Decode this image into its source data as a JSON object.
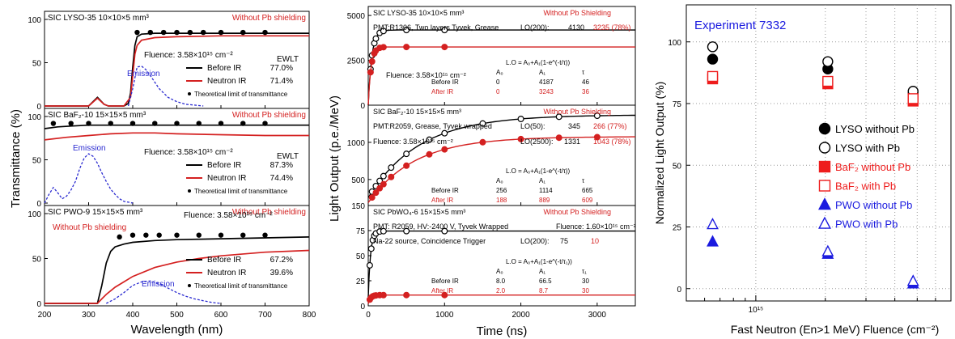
{
  "chart_data": [
    {
      "type": "line",
      "xlabel": "Wavelength (nm)",
      "ylabel": "Transmittance (%)",
      "xlim": [
        200,
        800
      ],
      "xticks": [
        "200",
        "300",
        "400",
        "500",
        "600",
        "700",
        "800"
      ],
      "panels": [
        {
          "name": "lyso",
          "title": "SIC LYSO-35  10×10×5 mm³",
          "shielding": "Without Pb shielding",
          "fluence": "Fluence: 3.58×10¹⁵ cm⁻²",
          "emission_label": "Emission",
          "ewlt_header": "EWLT",
          "ylim": [
            0,
            100
          ],
          "yticks": [
            "0",
            "50",
            "100"
          ],
          "legend": [
            {
              "label": "Before IR",
              "value": "77.0%",
              "color": "#000000"
            },
            {
              "label": "Neutron IR",
              "value": "71.4%",
              "color": "#d42020"
            }
          ],
          "theory_label": "Theoretical limit of transmittance",
          "series": [
            {
              "name": "Before IR",
              "color": "#000000",
              "x": [
                200,
                300,
                320,
                335,
                345,
                380,
                390,
                395,
                400,
                405,
                410,
                420,
                450,
                500,
                600,
                700,
                800
              ],
              "y": [
                0,
                0,
                10,
                2,
                0,
                0,
                3,
                15,
                45,
                70,
                80,
                83,
                84,
                84,
                84,
                84,
                84
              ]
            },
            {
              "name": "Neutron IR",
              "color": "#d42020",
              "x": [
                200,
                300,
                320,
                335,
                345,
                380,
                395,
                400,
                405,
                410,
                420,
                450,
                500,
                600,
                700,
                800
              ],
              "y": [
                0,
                0,
                9,
                2,
                0,
                0,
                10,
                35,
                60,
                70,
                76,
                79,
                80,
                81,
                81,
                81
              ]
            },
            {
              "name": "Emission",
              "color": "#2a2ad0",
              "dashed": true,
              "x": [
                390,
                400,
                410,
                420,
                430,
                440,
                460,
                480,
                500,
                520,
                540,
                560
              ],
              "y": [
                0,
                20,
                45,
                46,
                42,
                35,
                20,
                10,
                5,
                2,
                1,
                0
              ]
            }
          ],
          "theory_points": {
            "x": [
              410,
              440,
              470,
              500,
              530,
              560,
              600,
              650,
              700
            ],
            "y": [
              85,
              85,
              85,
              85,
              85,
              85,
              85,
              85,
              85
            ]
          }
        },
        {
          "name": "baf2",
          "title": "SIC BaF₂-10  15×15×5 mm³",
          "shielding": "Without Pb shielding",
          "fluence": "Fluence: 3.58×10¹⁵ cm⁻²",
          "emission_label": "Emission",
          "ewlt_header": "EWLT",
          "ylim": [
            0,
            100
          ],
          "yticks": [
            "0",
            "50",
            "100"
          ],
          "legend": [
            {
              "label": "Before IR",
              "value": "87.3%",
              "color": "#000000"
            },
            {
              "label": "Neutron IR",
              "value": "74.4%",
              "color": "#d42020"
            }
          ],
          "theory_label": "Theoretical limit of transmittance",
          "series": [
            {
              "name": "Before IR",
              "color": "#000000",
              "x": [
                200,
                230,
                260,
                300,
                350,
                400,
                500,
                600,
                700,
                800
              ],
              "y": [
                86,
                88,
                89,
                90,
                90,
                90,
                90,
                90,
                90,
                90
              ]
            },
            {
              "name": "Neutron IR",
              "color": "#d42020",
              "x": [
                200,
                250,
                300,
                350,
                400,
                450,
                500,
                600,
                700,
                800
              ],
              "y": [
                73,
                76,
                78,
                80,
                81,
                81,
                80,
                79,
                78,
                78
              ]
            },
            {
              "name": "Emission",
              "color": "#2a2ad0",
              "dashed": true,
              "x": [
                200,
                210,
                220,
                230,
                240,
                250,
                260,
                270,
                280,
                290,
                300,
                310,
                320,
                330,
                340,
                350,
                360,
                370,
                380,
                390,
                400
              ],
              "y": [
                0,
                10,
                18,
                12,
                5,
                8,
                15,
                25,
                40,
                52,
                57,
                54,
                46,
                35,
                25,
                16,
                10,
                5,
                2,
                1,
                0
              ]
            }
          ],
          "theory_points": {
            "x": [
              220,
              260,
              300,
              350,
              400,
              450,
              500,
              550,
              600,
              650,
              700
            ],
            "y": [
              92,
              92,
              92,
              92,
              92,
              92,
              92,
              92,
              92,
              92,
              92
            ]
          }
        },
        {
          "name": "pwo",
          "title": "SIC PWO-9  15×15×5 mm³",
          "shielding": "Without Pb shielding",
          "fluence": "Fluence: 3.58×10¹⁵ cm⁻²",
          "emission_label": "Emission",
          "ewlt_header": "",
          "ylim": [
            0,
            100
          ],
          "yticks": [
            "0",
            "50",
            "100"
          ],
          "legend": [
            {
              "label": "Before IR",
              "value": "67.2%",
              "color": "#000000"
            },
            {
              "label": "Neutron IR",
              "value": "39.6%",
              "color": "#d42020"
            }
          ],
          "theory_label": "Theoretical limit of transmittance",
          "series": [
            {
              "name": "Before IR",
              "color": "#000000",
              "x": [
                200,
                320,
                330,
                340,
                350,
                360,
                380,
                400,
                450,
                500,
                600,
                700,
                800
              ],
              "y": [
                0,
                0,
                20,
                45,
                58,
                63,
                66,
                68,
                70,
                71,
                72,
                73,
                74
              ]
            },
            {
              "name": "Neutron IR",
              "color": "#d42020",
              "x": [
                200,
                320,
                330,
                340,
                360,
                380,
                400,
                450,
                500,
                550,
                600,
                700,
                800
              ],
              "y": [
                0,
                0,
                5,
                10,
                18,
                24,
                30,
                40,
                46,
                50,
                53,
                57,
                59
              ]
            },
            {
              "name": "Emission",
              "color": "#2a2ad0",
              "dashed": true,
              "x": [
                340,
                360,
                380,
                400,
                420,
                440,
                460,
                480,
                500,
                520,
                540,
                560,
                580,
                600
              ],
              "y": [
                0,
                5,
                12,
                20,
                24,
                25,
                22,
                17,
                12,
                8,
                5,
                3,
                1,
                0
              ]
            }
          ],
          "theory_points": {
            "x": [
              370,
              400,
              430,
              460,
              500,
              550,
              600,
              650,
              700
            ],
            "y": [
              74,
              76,
              76,
              76,
              76,
              76,
              76,
              76,
              76
            ]
          }
        }
      ]
    },
    {
      "type": "line",
      "xlabel": "Time (ns)",
      "ylabel": "Light Output (p.e./MeV)",
      "xlim": [
        0,
        3500
      ],
      "xticks": [
        "0",
        "1000",
        "2000",
        "3000"
      ],
      "panels": [
        {
          "name": "lyso",
          "title": "SIC LYSO-35   10×10×5 mm³",
          "shielding": "Without Pb Shielding",
          "pmt": "PMT:R1306, Two layers Tyvek, Grease",
          "lo_label": "LO(200):",
          "lo_before": "4130",
          "lo_after": "3235 (78%)",
          "fluence": "Fluence: 3.58×10¹⁵ cm⁻²",
          "fit_formula": "L.O = A₀+A₁(1-e^(-t/τ))",
          "fit_headers": [
            "A₀",
            "A₁",
            "τ"
          ],
          "fit_rows": [
            {
              "label": "Before IR",
              "values": [
                "0",
                "4187",
                "46"
              ],
              "color": "#000000"
            },
            {
              "label": "After IR",
              "values": [
                "0",
                "3243",
                "36"
              ],
              "color": "#d42020"
            }
          ],
          "ylim": [
            0,
            5500
          ],
          "yticks": [
            "0",
            "2500",
            "5000"
          ],
          "series": [
            {
              "name": "Before IR",
              "color": "#000000",
              "A0": 0,
              "A1": 4187,
              "tau": 46,
              "points": [
                30,
                50,
                80,
                100,
                150,
                200,
                500,
                1000
              ]
            },
            {
              "name": "After IR",
              "color": "#d42020",
              "A0": 0,
              "A1": 3243,
              "tau": 36,
              "points": [
                30,
                50,
                80,
                100,
                150,
                200,
                500,
                1000
              ]
            }
          ]
        },
        {
          "name": "baf2",
          "title": "SIC BaF₂-10   15×15×5 mm³",
          "shielding": "Without Pb Shielding",
          "pmt": "PMT:R2059, Grease, Tyvek wrapped",
          "lo_rows": [
            {
              "label": "LO(50):",
              "before": "345",
              "after": "266 (77%)"
            },
            {
              "label": "LO(2500):",
              "before": "1331",
              "after": "1043 (78%)"
            }
          ],
          "fluence": "Fluence: 3.58×10¹⁵ cm⁻²",
          "fit_formula": "L.O = A₀+A₁(1-e^(-t/τ))",
          "fit_headers": [
            "A₀",
            "A₁",
            "τ"
          ],
          "fit_rows": [
            {
              "label": "Before IR",
              "values": [
                "256",
                "1114",
                "665"
              ],
              "color": "#000000"
            },
            {
              "label": "After IR",
              "values": [
                "188",
                "889",
                "609"
              ],
              "color": "#d42020"
            }
          ],
          "ylim": [
            150,
            1500
          ],
          "yticks": [
            "150",
            "500",
            "1000"
          ],
          "series": [
            {
              "name": "Before IR",
              "color": "#000000",
              "A0": 256,
              "A1": 1114,
              "tau": 665,
              "points": [
                50,
                100,
                150,
                200,
                300,
                500,
                800,
                1000,
                1500,
                2000,
                2500,
                3000
              ]
            },
            {
              "name": "After IR",
              "color": "#d42020",
              "A0": 188,
              "A1": 889,
              "tau": 609,
              "points": [
                50,
                100,
                150,
                200,
                300,
                500,
                800,
                1000,
                1500,
                2000,
                2500,
                3000
              ]
            }
          ]
        },
        {
          "name": "pwo",
          "title": "SIC PbWO₄-6   15×15×5 mm³",
          "shielding": "Without Pb Shielding",
          "pmt": "PMT: R2059, HV:-2400 V, Tyvek Wrapped",
          "fluence": "Fluence: 1.60×10¹⁵ cm⁻²",
          "source": "Na-22 source, Coincidence Trigger",
          "lo_label": "LO(200):",
          "lo_before": "75",
          "lo_after": "10",
          "fit_formula": "L.O = A₀+A₁(1-e^(-t/τ₁))",
          "fit_headers": [
            "A₀",
            "A₁",
            "τ₁"
          ],
          "fit_rows": [
            {
              "label": "Before IR",
              "values": [
                "8.0",
                "66.5",
                "30"
              ],
              "color": "#000000"
            },
            {
              "label": "After IR",
              "values": [
                "2.0",
                "8.7",
                "30"
              ],
              "color": "#d42020"
            }
          ],
          "ylim": [
            0,
            100
          ],
          "yticks": [
            "0",
            "25",
            "50",
            "75"
          ],
          "series": [
            {
              "name": "Before IR",
              "color": "#000000",
              "A0": 8,
              "A1": 66.5,
              "tau": 30,
              "points": [
                20,
                40,
                60,
                80,
                100,
                150,
                200,
                500,
                1000
              ]
            },
            {
              "name": "After IR",
              "color": "#d42020",
              "A0": 2,
              "A1": 8.7,
              "tau": 30,
              "points": [
                20,
                40,
                60,
                80,
                100,
                150,
                200,
                500,
                1000
              ]
            }
          ]
        }
      ]
    },
    {
      "type": "scatter",
      "title": "Experiment 7332",
      "xlabel": "Fast Neutron (En>1 MeV) Fluence (cm⁻²)",
      "ylabel": "Normalized Light Output (%)",
      "x_scale": "log",
      "xlim": [
        500000000000000.0,
        7000000000000000.0
      ],
      "ylim": [
        -5,
        115
      ],
      "xtick_label": "10¹⁵",
      "yticks": [
        "0",
        "25",
        "50",
        "75",
        "100"
      ],
      "legend_position": "right",
      "series": [
        {
          "name": "LYSO without Pb",
          "marker": "circle",
          "filled": true,
          "color": "#000000",
          "x": [
            650000000000000.0,
            2050000000000000.0,
            4800000000000000.0
          ],
          "y": [
            93,
            89,
            79
          ]
        },
        {
          "name": "LYSO with Pb",
          "marker": "circle",
          "filled": false,
          "color": "#000000",
          "x": [
            650000000000000.0,
            2050000000000000.0,
            4800000000000000.0
          ],
          "y": [
            98,
            92,
            80
          ]
        },
        {
          "name": "BaF₂ without Pb",
          "marker": "square",
          "filled": true,
          "color": "#ee1c1c",
          "x": [
            650000000000000.0,
            2050000000000000.0,
            4800000000000000.0
          ],
          "y": [
            85,
            83,
            76
          ]
        },
        {
          "name": "BaF₂ with Pb",
          "marker": "square",
          "filled": false,
          "color": "#ee1c1c",
          "x": [
            650000000000000.0,
            2050000000000000.0,
            4800000000000000.0
          ],
          "y": [
            86,
            84,
            77
          ]
        },
        {
          "name": "PWO without Pb",
          "marker": "triangle",
          "filled": true,
          "color": "#1a1adf",
          "x": [
            650000000000000.0,
            2050000000000000.0,
            4800000000000000.0
          ],
          "y": [
            19,
            14,
            2
          ]
        },
        {
          "name": "PWO with Pb",
          "marker": "triangle",
          "filled": false,
          "color": "#1a1adf",
          "x": [
            650000000000000.0,
            2050000000000000.0,
            4800000000000000.0
          ],
          "y": [
            26,
            15,
            3
          ]
        }
      ]
    }
  ]
}
